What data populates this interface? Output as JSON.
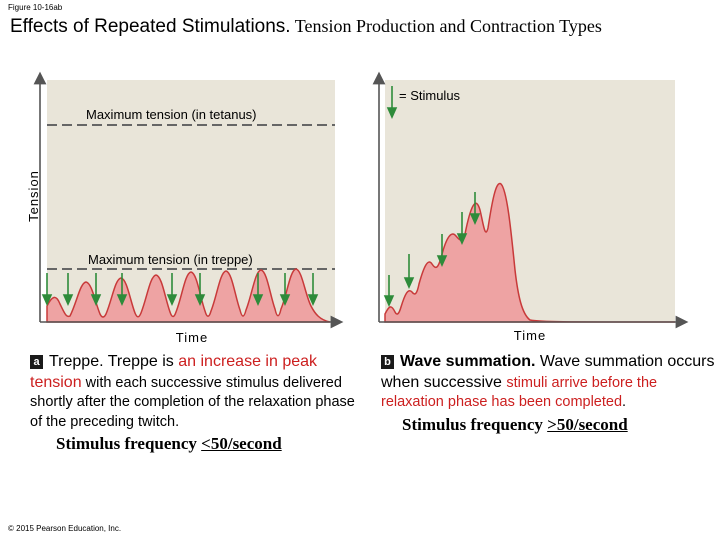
{
  "figure_label": "Figure 10-16ab",
  "title": {
    "sans": "Effects of Repeated Stimulations.",
    "serif": " Tension Production and Contraction Types"
  },
  "panel_a": {
    "y_axis_label": "Tension",
    "x_axis_label": "Time",
    "max_tetanus_label": "Maximum tension (in tetanus)",
    "max_treppe_label": "Maximum tension (in treppe)",
    "badge": "a",
    "caption_term": "Treppe.",
    "caption_1": " Treppe is ",
    "caption_red": "an increase in peak tension",
    "caption_2": " with each successive stimulus delivered shortly after the completion of the relaxation phase of the preceding twitch.",
    "freq_prefix": "Stimulus frequency ",
    "freq_value": "<50/second"
  },
  "panel_b": {
    "legend": "= Stimulus",
    "x_axis_label": "Time",
    "badge": "b",
    "caption_term": "Wave summation.",
    "caption_1": " Wave summation occurs when successive ",
    "caption_red": "stimuli arrive before the relaxation phase has been completed",
    "caption_2": ".",
    "freq_prefix": "Stimulus frequency ",
    "freq_value": ">50/second"
  },
  "copyright": "© 2015 Pearson Education, Inc.",
  "colors": {
    "panel_bg": "#e9e5d9",
    "curve_fill": "#eea3a3",
    "curve_stroke": "#c83a3a",
    "arrow": "#2e8b3a",
    "highlight": "#cc1f1f"
  }
}
